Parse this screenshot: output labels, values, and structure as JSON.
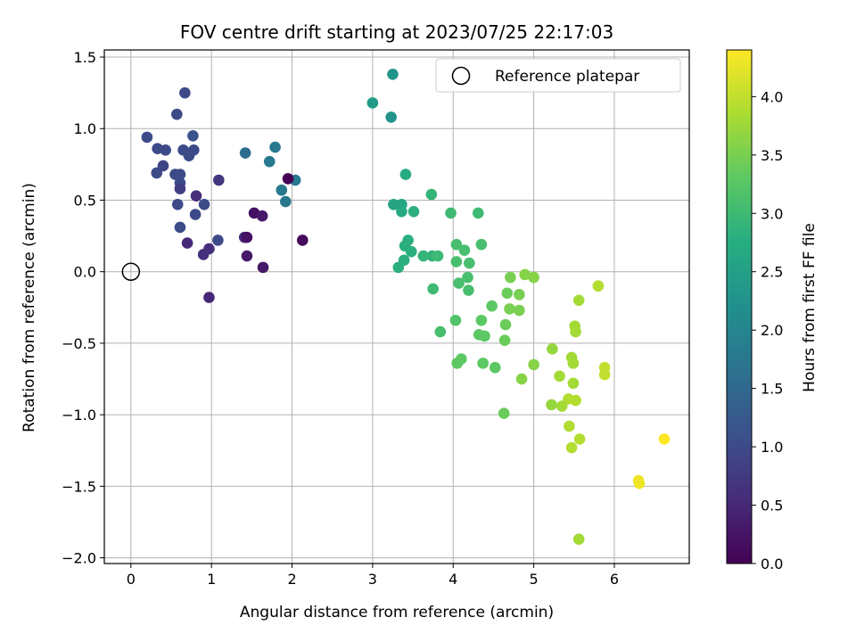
{
  "chart_data": {
    "type": "scatter",
    "title": "FOV centre drift starting at 2023/07/25 22:17:03",
    "xlabel": "Angular distance from reference (arcmin)",
    "ylabel": "Rotation from reference (arcmin)",
    "xlim": [
      -0.33,
      6.93
    ],
    "ylim": [
      -2.04,
      1.55
    ],
    "xticks": [
      "0",
      "1",
      "2",
      "3",
      "4",
      "5",
      "6"
    ],
    "yticks": [
      "1.5",
      "1.0",
      "0.5",
      "0.0",
      "−0.5",
      "−1.0",
      "−1.5",
      "−2.0"
    ],
    "grid": true,
    "legend": {
      "position": "top-right",
      "label": "Reference platepar"
    },
    "reference_point": {
      "x": 0.0,
      "y": 0.0
    },
    "colorbar": {
      "label": "Hours from first FF file",
      "range": [
        0.0,
        4.4
      ],
      "ticks": [
        "0.0",
        "0.5",
        "1.0",
        "1.5",
        "2.0",
        "2.5",
        "3.0",
        "3.5",
        "4.0"
      ],
      "colormap": "viridis"
    },
    "points": [
      [
        0.2,
        0.94,
        1.0
      ],
      [
        0.33,
        0.86,
        1.0
      ],
      [
        0.43,
        0.85,
        1.0
      ],
      [
        0.67,
        1.25,
        1.0
      ],
      [
        0.57,
        1.1,
        1.0
      ],
      [
        0.77,
        0.95,
        1.1
      ],
      [
        0.65,
        0.85,
        1.0
      ],
      [
        0.78,
        0.85,
        1.0
      ],
      [
        0.72,
        0.81,
        1.0
      ],
      [
        0.32,
        0.69,
        1.0
      ],
      [
        0.4,
        0.74,
        0.9
      ],
      [
        0.55,
        0.68,
        1.0
      ],
      [
        0.61,
        0.68,
        1.0
      ],
      [
        0.61,
        0.62,
        1.0
      ],
      [
        0.61,
        0.58,
        0.8
      ],
      [
        0.58,
        0.47,
        1.0
      ],
      [
        0.91,
        0.47,
        1.0
      ],
      [
        0.8,
        0.4,
        1.0
      ],
      [
        0.61,
        0.31,
        1.0
      ],
      [
        0.81,
        0.53,
        0.6
      ],
      [
        1.09,
        0.64,
        0.7
      ],
      [
        0.7,
        0.2,
        0.5
      ],
      [
        1.08,
        0.22,
        1.0
      ],
      [
        0.97,
        0.16,
        0.6
      ],
      [
        0.9,
        0.12,
        0.6
      ],
      [
        0.97,
        -0.18,
        0.5
      ],
      [
        1.42,
        0.83,
        1.6
      ],
      [
        1.72,
        0.77,
        1.8
      ],
      [
        1.79,
        0.87,
        1.8
      ],
      [
        1.87,
        0.57,
        1.8
      ],
      [
        1.92,
        0.49,
        1.8
      ],
      [
        2.04,
        0.64,
        1.8
      ],
      [
        1.95,
        0.65,
        0.0
      ],
      [
        1.53,
        0.41,
        0.2
      ],
      [
        1.63,
        0.39,
        0.3
      ],
      [
        1.41,
        0.24,
        0.5
      ],
      [
        1.44,
        0.24,
        0.2
      ],
      [
        1.44,
        0.11,
        0.3
      ],
      [
        1.64,
        0.03,
        0.3
      ],
      [
        2.13,
        0.22,
        0.1
      ],
      [
        3.0,
        1.18,
        2.4
      ],
      [
        3.25,
        1.38,
        2.3
      ],
      [
        3.23,
        1.08,
        2.3
      ],
      [
        3.26,
        0.47,
        2.6
      ],
      [
        3.36,
        0.47,
        2.6
      ],
      [
        3.36,
        0.42,
        2.7
      ],
      [
        3.51,
        0.42,
        2.8
      ],
      [
        3.41,
        0.68,
        2.7
      ],
      [
        3.4,
        0.18,
        2.8
      ],
      [
        3.44,
        0.22,
        2.8
      ],
      [
        3.48,
        0.14,
        2.8
      ],
      [
        3.63,
        0.11,
        2.9
      ],
      [
        3.74,
        0.11,
        2.9
      ],
      [
        3.81,
        0.11,
        3.0
      ],
      [
        3.39,
        0.08,
        2.8
      ],
      [
        3.32,
        0.03,
        2.8
      ],
      [
        3.73,
        0.54,
        2.9
      ],
      [
        3.97,
        0.41,
        3.0
      ],
      [
        4.31,
        0.41,
        3.0
      ],
      [
        4.04,
        0.19,
        3.1
      ],
      [
        4.14,
        0.15,
        3.1
      ],
      [
        4.35,
        0.19,
        3.1
      ],
      [
        4.04,
        0.07,
        3.1
      ],
      [
        4.2,
        0.06,
        3.1
      ],
      [
        4.07,
        -0.08,
        3.1
      ],
      [
        4.18,
        -0.04,
        3.1
      ],
      [
        4.19,
        -0.13,
        3.1
      ],
      [
        3.75,
        -0.12,
        3.0
      ],
      [
        3.84,
        -0.42,
        3.1
      ],
      [
        4.03,
        -0.34,
        3.2
      ],
      [
        4.35,
        -0.34,
        3.3
      ],
      [
        4.32,
        -0.44,
        3.3
      ],
      [
        4.39,
        -0.45,
        3.3
      ],
      [
        4.48,
        -0.24,
        3.3
      ],
      [
        4.65,
        -0.37,
        3.4
      ],
      [
        4.64,
        -0.48,
        3.4
      ],
      [
        4.71,
        -0.04,
        3.5
      ],
      [
        4.67,
        -0.15,
        3.4
      ],
      [
        4.82,
        -0.16,
        3.5
      ],
      [
        4.7,
        -0.26,
        3.5
      ],
      [
        4.82,
        -0.27,
        3.5
      ],
      [
        4.1,
        -0.61,
        3.3
      ],
      [
        4.05,
        -0.64,
        3.3
      ],
      [
        4.37,
        -0.64,
        3.3
      ],
      [
        4.52,
        -0.67,
        3.3
      ],
      [
        4.63,
        -0.99,
        3.4
      ],
      [
        4.89,
        -0.02,
        3.6
      ],
      [
        5.0,
        -0.04,
        3.6
      ],
      [
        5.0,
        -0.65,
        3.6
      ],
      [
        4.85,
        -0.75,
        3.6
      ],
      [
        5.56,
        -0.2,
        3.8
      ],
      [
        5.8,
        -0.1,
        3.9
      ],
      [
        5.51,
        -0.38,
        3.8
      ],
      [
        5.52,
        -0.42,
        3.8
      ],
      [
        5.23,
        -0.54,
        3.7
      ],
      [
        5.47,
        -0.6,
        3.8
      ],
      [
        5.49,
        -0.64,
        3.8
      ],
      [
        5.32,
        -0.73,
        3.8
      ],
      [
        5.49,
        -0.78,
        3.8
      ],
      [
        5.43,
        -0.89,
        3.9
      ],
      [
        5.52,
        -0.9,
        3.9
      ],
      [
        5.22,
        -0.93,
        3.7
      ],
      [
        5.35,
        -0.94,
        3.8
      ],
      [
        5.44,
        -1.08,
        3.9
      ],
      [
        5.57,
        -1.17,
        3.9
      ],
      [
        5.47,
        -1.23,
        3.9
      ],
      [
        5.56,
        -1.87,
        3.8
      ],
      [
        5.88,
        -0.67,
        4.0
      ],
      [
        5.88,
        -0.72,
        4.0
      ],
      [
        6.3,
        -1.46,
        4.3
      ],
      [
        6.31,
        -1.48,
        4.3
      ],
      [
        6.62,
        -1.17,
        4.4
      ]
    ]
  }
}
